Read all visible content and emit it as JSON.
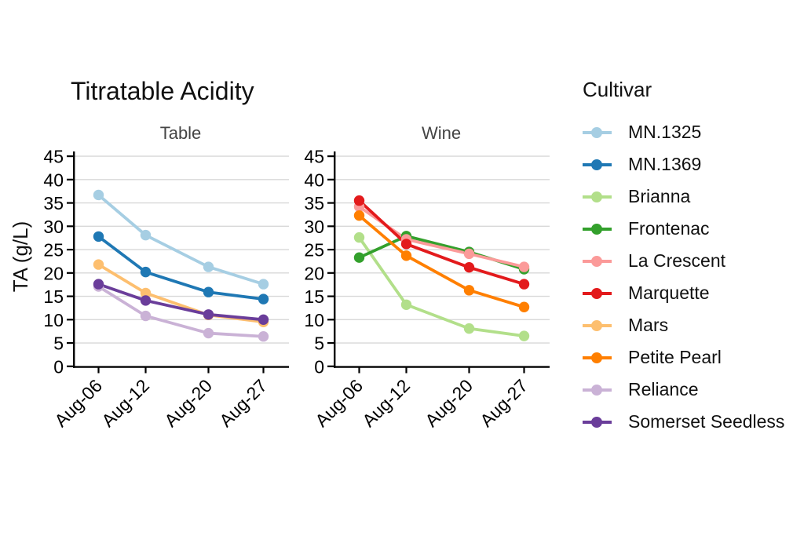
{
  "legend": {
    "title": "Cultivar",
    "entries": [
      {
        "label": "MN.1325",
        "color": "#a6cee3"
      },
      {
        "label": "MN.1369",
        "color": "#1f78b4"
      },
      {
        "label": "Brianna",
        "color": "#b2df8a"
      },
      {
        "label": "Frontenac",
        "color": "#33a02c"
      },
      {
        "label": "La Crescent",
        "color": "#fb9a99"
      },
      {
        "label": "Marquette",
        "color": "#e31a1c"
      },
      {
        "label": "Mars",
        "color": "#fdbf6f"
      },
      {
        "label": "Petite Pearl",
        "color": "#ff7f00"
      },
      {
        "label": "Reliance",
        "color": "#cab2d6"
      },
      {
        "label": "Somerset Seedless",
        "color": "#6a3d9a"
      }
    ]
  },
  "chart_data": {
    "type": "line",
    "title": "Titratable Acidity",
    "ylabel": "TA (g/L)",
    "ylim": [
      0,
      45
    ],
    "yticks": [
      0,
      5,
      10,
      15,
      20,
      25,
      30,
      35,
      40,
      45
    ],
    "grid": "horizontal",
    "legend_position": "right",
    "legend_title": "Cultivar",
    "categories": [
      "Aug-06",
      "Aug-12",
      "Aug-20",
      "Aug-27"
    ],
    "x_day_offsets": [
      0,
      6,
      14,
      21
    ],
    "panels": [
      {
        "title": "Table",
        "series": [
          {
            "name": "MN.1325",
            "color": "#a6cee3",
            "values": [
              36.7,
              28.1,
              21.3,
              17.6
            ]
          },
          {
            "name": "MN.1369",
            "color": "#1f78b4",
            "values": [
              27.8,
              20.2,
              15.9,
              14.4
            ]
          },
          {
            "name": "Mars",
            "color": "#fdbf6f",
            "values": [
              21.8,
              15.7,
              11.0,
              9.5
            ]
          },
          {
            "name": "Reliance",
            "color": "#cab2d6",
            "values": [
              17.1,
              10.8,
              7.1,
              6.4
            ]
          },
          {
            "name": "Somerset Seedless",
            "color": "#6a3d9a",
            "values": [
              17.6,
              14.1,
              11.1,
              10.0
            ]
          }
        ]
      },
      {
        "title": "Wine",
        "series": [
          {
            "name": "Brianna",
            "color": "#b2df8a",
            "values": [
              27.6,
              13.2,
              8.1,
              6.5
            ]
          },
          {
            "name": "Frontenac",
            "color": "#33a02c",
            "values": [
              23.3,
              27.9,
              24.5,
              20.8
            ]
          },
          {
            "name": "La Crescent",
            "color": "#fb9a99",
            "values": [
              34.2,
              27.2,
              24.1,
              21.3
            ]
          },
          {
            "name": "Marquette",
            "color": "#e31a1c",
            "values": [
              35.5,
              26.2,
              21.2,
              17.6
            ]
          },
          {
            "name": "Petite Pearl",
            "color": "#ff7f00",
            "values": [
              32.3,
              23.7,
              16.3,
              12.7
            ]
          }
        ]
      }
    ]
  }
}
